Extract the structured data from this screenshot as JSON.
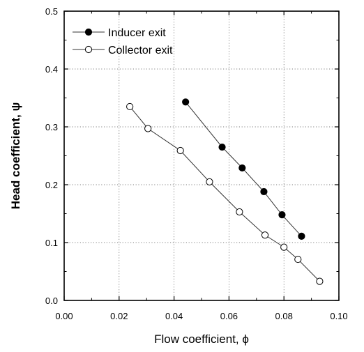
{
  "chart_data": {
    "type": "line",
    "xlabel": "Flow coefficient, ϕ",
    "ylabel": "Head coefficient, ψ",
    "xlim": [
      0.0,
      0.1
    ],
    "ylim": [
      0.0,
      0.5
    ],
    "x_ticks": [
      "0.00",
      "0.02",
      "0.04",
      "0.06",
      "0.08",
      "0.10"
    ],
    "y_ticks": [
      "0.0",
      "0.1",
      "0.2",
      "0.3",
      "0.4",
      "0.5"
    ],
    "grid": true,
    "legend_position": "top-left",
    "series": [
      {
        "name": "Inducer exit",
        "marker": "filled-circle",
        "color": "#000000",
        "points": [
          [
            0.0442,
            0.343
          ],
          [
            0.0575,
            0.265
          ],
          [
            0.0648,
            0.229
          ],
          [
            0.0727,
            0.188
          ],
          [
            0.0793,
            0.148
          ],
          [
            0.0864,
            0.111
          ]
        ]
      },
      {
        "name": "Collector exit",
        "marker": "open-circle",
        "color": "#000000",
        "points": [
          [
            0.0239,
            0.335
          ],
          [
            0.0305,
            0.297
          ],
          [
            0.0423,
            0.259
          ],
          [
            0.0529,
            0.205
          ],
          [
            0.0638,
            0.153
          ],
          [
            0.0731,
            0.113
          ],
          [
            0.08,
            0.092
          ],
          [
            0.0851,
            0.071
          ],
          [
            0.093,
            0.033
          ]
        ]
      }
    ]
  }
}
